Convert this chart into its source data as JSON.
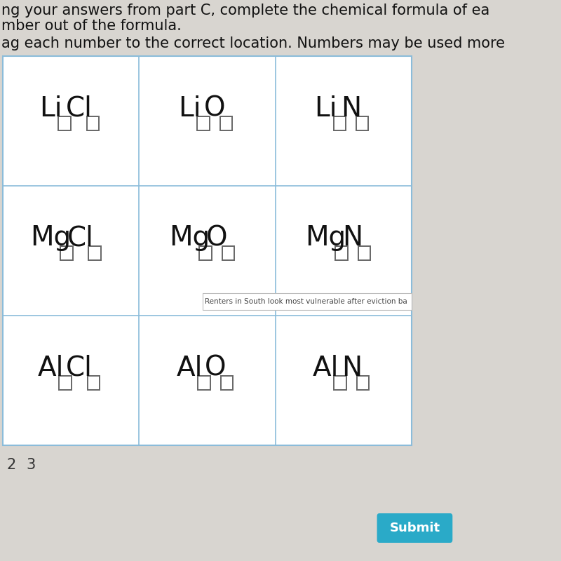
{
  "background_color": "#d8d5d0",
  "table_bg": "#ffffff",
  "header_lines": [
    "ng your answers from part C, complete the chemical formula of ea",
    "mber out of the formula.",
    "ag each number to the correct location. Numbers may be used more"
  ],
  "cells": [
    {
      "row": 0,
      "col": 0,
      "metal": "Li",
      "anion": "Cl"
    },
    {
      "row": 0,
      "col": 1,
      "metal": "Li",
      "anion": "O"
    },
    {
      "row": 0,
      "col": 2,
      "metal": "Li",
      "anion": "N"
    },
    {
      "row": 1,
      "col": 0,
      "metal": "Mg",
      "anion": "Cl"
    },
    {
      "row": 1,
      "col": 1,
      "metal": "Mg",
      "anion": "O"
    },
    {
      "row": 1,
      "col": 2,
      "metal": "Mg",
      "anion": "N"
    },
    {
      "row": 2,
      "col": 0,
      "metal": "Al",
      "anion": "Cl"
    },
    {
      "row": 2,
      "col": 1,
      "metal": "Al",
      "anion": "O"
    },
    {
      "row": 2,
      "col": 2,
      "metal": "Al",
      "anion": "N"
    }
  ],
  "numbers_below": [
    "2",
    "3"
  ],
  "submit_button_color": "#2aaac8",
  "submit_text": "Submit",
  "tooltip_text": "Renters in South look most vulnerable after eviction ba",
  "line_color": "#8bbcda",
  "header_fontsize": 15,
  "formula_fontsize": 28,
  "box_edge_color": "#666666",
  "box_fill_color": "#ffffff"
}
